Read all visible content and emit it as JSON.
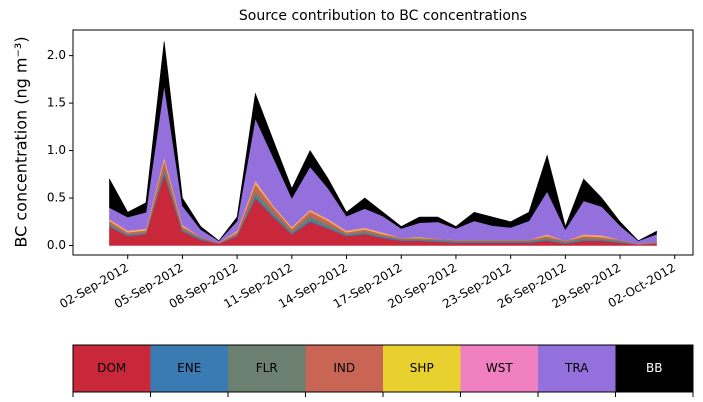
{
  "chart_data": {
    "type": "stacked-area",
    "title": "Source contribution to BC concentrations",
    "ylabel": "BC concentration (ng m⁻³)",
    "x": [
      "2012-09-01",
      "2012-09-02",
      "2012-09-03",
      "2012-09-04",
      "2012-09-05",
      "2012-09-06",
      "2012-09-07",
      "2012-09-08",
      "2012-09-09",
      "2012-09-10",
      "2012-09-11",
      "2012-09-12",
      "2012-09-13",
      "2012-09-14",
      "2012-09-15",
      "2012-09-16",
      "2012-09-17",
      "2012-09-18",
      "2012-09-19",
      "2012-09-20",
      "2012-09-21",
      "2012-09-22",
      "2012-09-23",
      "2012-09-24",
      "2012-09-25",
      "2012-09-26",
      "2012-09-27",
      "2012-09-28",
      "2012-09-29",
      "2012-09-30",
      "2012-10-01"
    ],
    "series": [
      {
        "name": "DOM",
        "color": "#c8283a",
        "values": [
          0.2,
          0.1,
          0.12,
          0.75,
          0.15,
          0.06,
          0.02,
          0.1,
          0.5,
          0.3,
          0.12,
          0.25,
          0.18,
          0.1,
          0.12,
          0.08,
          0.05,
          0.05,
          0.04,
          0.03,
          0.03,
          0.03,
          0.03,
          0.03,
          0.05,
          0.02,
          0.05,
          0.05,
          0.03,
          0.01,
          0.02
        ]
      },
      {
        "name": "ENE",
        "color": "#3b7bb3",
        "values": [
          0.01,
          0.01,
          0.01,
          0.02,
          0.01,
          0.01,
          0,
          0.01,
          0.02,
          0.02,
          0.01,
          0.02,
          0.01,
          0.01,
          0.01,
          0.01,
          0.01,
          0.01,
          0.01,
          0.01,
          0.01,
          0.01,
          0.01,
          0.01,
          0.01,
          0.01,
          0.01,
          0.01,
          0.01,
          0,
          0
        ]
      },
      {
        "name": "FLR",
        "color": "#6b8070",
        "values": [
          0.02,
          0.01,
          0.01,
          0.05,
          0.02,
          0.01,
          0,
          0.01,
          0.05,
          0.03,
          0.02,
          0.04,
          0.03,
          0.01,
          0.02,
          0.01,
          0.01,
          0.01,
          0.01,
          0.01,
          0.01,
          0.01,
          0.01,
          0.01,
          0.02,
          0.01,
          0.02,
          0.01,
          0.01,
          0,
          0.01
        ]
      },
      {
        "name": "IND",
        "color": "#c96555",
        "values": [
          0.03,
          0.02,
          0.02,
          0.08,
          0.02,
          0.01,
          0.01,
          0.02,
          0.08,
          0.05,
          0.03,
          0.05,
          0.04,
          0.02,
          0.02,
          0.02,
          0.01,
          0.01,
          0.01,
          0.01,
          0.01,
          0.01,
          0.01,
          0.01,
          0.02,
          0.01,
          0.02,
          0.02,
          0.01,
          0.01,
          0.01
        ]
      },
      {
        "name": "SHP",
        "color": "#e8d02e",
        "values": [
          0.01,
          0.01,
          0.01,
          0.02,
          0.01,
          0,
          0,
          0.01,
          0.02,
          0.01,
          0.01,
          0.01,
          0.01,
          0.01,
          0.01,
          0.01,
          0,
          0.01,
          0,
          0,
          0,
          0,
          0,
          0,
          0.01,
          0,
          0.01,
          0.01,
          0,
          0,
          0
        ]
      },
      {
        "name": "WST",
        "color": "#f080bf",
        "values": [
          0.01,
          0.01,
          0.01,
          0.02,
          0.01,
          0,
          0,
          0.01,
          0.02,
          0.01,
          0.01,
          0.01,
          0.01,
          0.01,
          0.01,
          0.01,
          0,
          0,
          0,
          0,
          0,
          0,
          0,
          0,
          0.01,
          0,
          0.01,
          0.01,
          0,
          0,
          0
        ]
      },
      {
        "name": "TRA",
        "color": "#9370db",
        "values": [
          0.12,
          0.14,
          0.17,
          0.75,
          0.2,
          0.08,
          0.02,
          0.1,
          0.65,
          0.5,
          0.3,
          0.45,
          0.32,
          0.15,
          0.2,
          0.17,
          0.1,
          0.15,
          0.18,
          0.12,
          0.2,
          0.15,
          0.13,
          0.2,
          0.45,
          0.12,
          0.35,
          0.3,
          0.15,
          0.03,
          0.08
        ]
      },
      {
        "name": "BB",
        "color": "#000000",
        "values": [
          0.3,
          0.05,
          0.1,
          0.46,
          0.08,
          0.03,
          0,
          0.04,
          0.26,
          0.18,
          0.1,
          0.17,
          0.1,
          0.04,
          0.11,
          0.04,
          0.02,
          0.06,
          0.05,
          0.02,
          0.09,
          0.09,
          0.06,
          0.09,
          0.38,
          0.03,
          0.23,
          0.09,
          0.04,
          0,
          0.03
        ]
      }
    ],
    "xlim": [
      "2012-08-30",
      "2012-10-03"
    ],
    "xticks": [
      {
        "value": "2012-09-02",
        "label": "02-Sep-2012"
      },
      {
        "value": "2012-09-05",
        "label": "05-Sep-2012"
      },
      {
        "value": "2012-09-08",
        "label": "08-Sep-2012"
      },
      {
        "value": "2012-09-11",
        "label": "11-Sep-2012"
      },
      {
        "value": "2012-09-14",
        "label": "14-Sep-2012"
      },
      {
        "value": "2012-09-17",
        "label": "17-Sep-2012"
      },
      {
        "value": "2012-09-20",
        "label": "20-Sep-2012"
      },
      {
        "value": "2012-09-23",
        "label": "23-Sep-2012"
      },
      {
        "value": "2012-09-26",
        "label": "26-Sep-2012"
      },
      {
        "value": "2012-09-29",
        "label": "29-Sep-2012"
      },
      {
        "value": "2012-10-02",
        "label": "02-Oct-2012"
      }
    ],
    "ylim": [
      -0.1,
      2.27
    ],
    "yticks": [
      {
        "value": 0,
        "label": "0.0"
      },
      0.5,
      {
        "value": 1,
        "label": "1.0"
      },
      1.5,
      {
        "value": 2,
        "label": "2.0"
      }
    ]
  }
}
